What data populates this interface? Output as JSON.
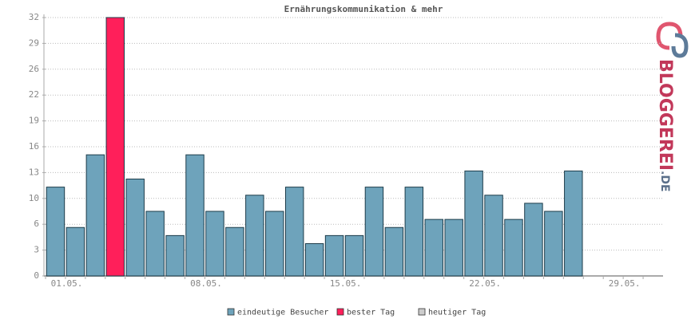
{
  "chart_data": {
    "type": "bar",
    "title": "Ernährungskommunikation & mehr",
    "categories": [
      "01.05.",
      null,
      null,
      null,
      null,
      null,
      null,
      "08.05.",
      null,
      null,
      null,
      null,
      null,
      null,
      "15.05.",
      null,
      null,
      null,
      null,
      null,
      null,
      "22.05.",
      null,
      null,
      null,
      null,
      null,
      null,
      "29.05.",
      null,
      null
    ],
    "series": [
      {
        "name": "eindeutige Besucher",
        "color": "#6ea3bb",
        "values": [
          11,
          6,
          15,
          null,
          12,
          8,
          5,
          15,
          8,
          6,
          10,
          8,
          11,
          4,
          5,
          5,
          11,
          6,
          11,
          7,
          7,
          13,
          10,
          7,
          9,
          8,
          13,
          null,
          null,
          null,
          null
        ]
      },
      {
        "name": "bester Tag",
        "color": "#ff1f5a",
        "values": [
          null,
          null,
          null,
          32,
          null,
          null,
          null,
          null,
          null,
          null,
          null,
          null,
          null,
          null,
          null,
          null,
          null,
          null,
          null,
          null,
          null,
          null,
          null,
          null,
          null,
          null,
          null,
          null,
          null,
          null,
          null
        ]
      },
      {
        "name": "heutiger Tag",
        "color": "#cccccc",
        "values": [
          null,
          null,
          null,
          null,
          null,
          null,
          null,
          null,
          null,
          null,
          null,
          null,
          null,
          null,
          null,
          null,
          null,
          null,
          null,
          null,
          null,
          null,
          null,
          null,
          null,
          null,
          null,
          null,
          null,
          null,
          null
        ]
      }
    ],
    "ylim": [
      0,
      32
    ],
    "yticks": [
      0,
      {
        "value": 3.2,
        "label": "3"
      },
      {
        "value": 6.4,
        "label": "6"
      },
      {
        "value": 9.6,
        "label": "10"
      },
      {
        "value": 12.8,
        "label": "13"
      },
      16,
      {
        "value": 19.2,
        "label": "19"
      },
      {
        "value": 22.4,
        "label": "22"
      },
      {
        "value": 25.6,
        "label": "26"
      },
      {
        "value": 28.8,
        "label": "29"
      },
      32
    ],
    "grid": true,
    "logo": {
      "brand": "BLOGGEREI",
      "tld": ".DE"
    }
  }
}
